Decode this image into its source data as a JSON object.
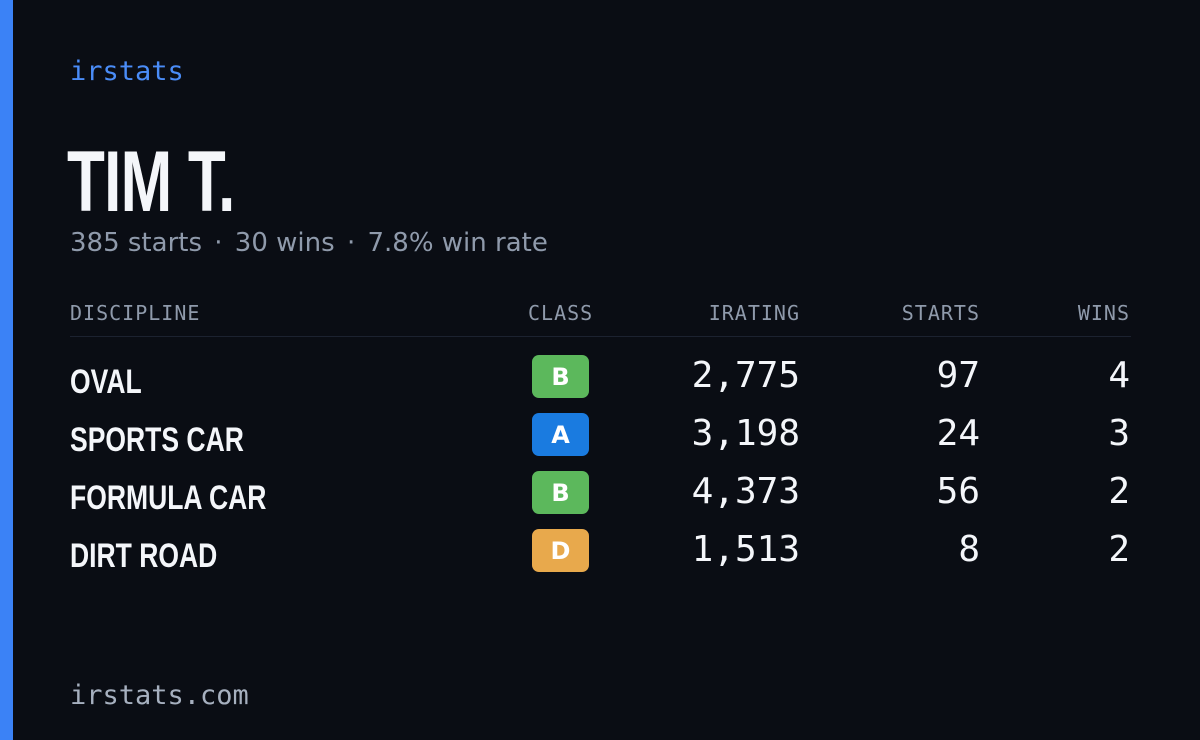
{
  "brand": "irstats",
  "driver": {
    "name": "TIM T.",
    "starts_text": "385 starts",
    "wins_text": "30 wins",
    "winrate_text": "7.8% win rate",
    "separator": "·"
  },
  "table": {
    "headers": {
      "discipline": "DISCIPLINE",
      "class": "CLASS",
      "irating": "IRATING",
      "starts": "STARTS",
      "wins": "WINS"
    },
    "rows": [
      {
        "discipline": "OVAL",
        "class": "B",
        "class_color": "#5cb85c",
        "irating": "2,775",
        "starts": "97",
        "wins": "4"
      },
      {
        "discipline": "SPORTS CAR",
        "class": "A",
        "class_color": "#1a7be0",
        "irating": "3,198",
        "starts": "24",
        "wins": "3"
      },
      {
        "discipline": "FORMULA CAR",
        "class": "B",
        "class_color": "#5cb85c",
        "irating": "4,373",
        "starts": "56",
        "wins": "2"
      },
      {
        "discipline": "DIRT ROAD",
        "class": "D",
        "class_color": "#e8a94c",
        "irating": "1,513",
        "starts": "8",
        "wins": "2"
      }
    ]
  },
  "footer": "irstats.com",
  "colors": {
    "background": "#0a0d14",
    "accent": "#3b82f6"
  }
}
